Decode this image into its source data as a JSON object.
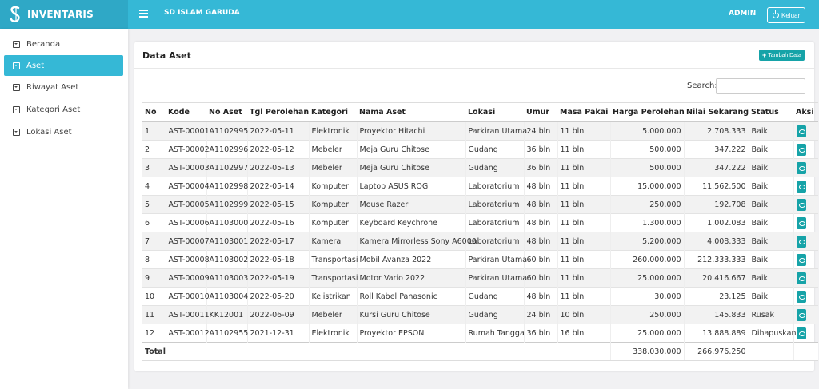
{
  "header": {
    "brand": "INVENTARIS",
    "school": "SD ISLAM GARUDA",
    "user": "ADMIN",
    "logout_label": "Keluar"
  },
  "colors": {
    "accent": "#35b8d6",
    "brand_bg": "#2fa8c6",
    "button": "#16a3a8"
  },
  "sidebar": {
    "items": [
      {
        "label": "Beranda",
        "active": false
      },
      {
        "label": "Aset",
        "active": true
      },
      {
        "label": "Riwayat Aset",
        "active": false
      },
      {
        "label": "Kategori Aset",
        "active": false
      },
      {
        "label": "Lokasi Aset",
        "active": false
      }
    ]
  },
  "main": {
    "title": "Data Aset",
    "add_label": "Tambah Data",
    "search_label": "Search:",
    "search_value": "",
    "table": {
      "headers": [
        "No",
        "Kode",
        "No Aset",
        "Tgl Perolehan",
        "Kategori",
        "Nama Aset",
        "Lokasi",
        "Umur",
        "Masa Pakai",
        "Harga Perolehan",
        "Nilai Sekarang",
        "Status",
        "Aksi"
      ],
      "rows": [
        [
          "1",
          "AST-00001",
          "A1102995",
          "2022-05-11",
          "Elektronik",
          "Proyektor Hitachi",
          "Parkiran Utama",
          "24 bln",
          "11 bln",
          "5.000.000",
          "2.708.333",
          "Baik"
        ],
        [
          "2",
          "AST-00002",
          "A1102996",
          "2022-05-12",
          "Mebeler",
          "Meja Guru Chitose",
          "Gudang",
          "36 bln",
          "11 bln",
          "500.000",
          "347.222",
          "Baik"
        ],
        [
          "3",
          "AST-00003",
          "A1102997",
          "2022-05-13",
          "Mebeler",
          "Meja Guru Chitose",
          "Gudang",
          "36 bln",
          "11 bln",
          "500.000",
          "347.222",
          "Baik"
        ],
        [
          "4",
          "AST-00004",
          "A1102998",
          "2022-05-14",
          "Komputer",
          "Laptop ASUS ROG",
          "Laboratorium",
          "48 bln",
          "11 bln",
          "15.000.000",
          "11.562.500",
          "Baik"
        ],
        [
          "5",
          "AST-00005",
          "A1102999",
          "2022-05-15",
          "Komputer",
          "Mouse Razer",
          "Laboratorium",
          "48 bln",
          "11 bln",
          "250.000",
          "192.708",
          "Baik"
        ],
        [
          "6",
          "AST-00006",
          "A1103000",
          "2022-05-16",
          "Komputer",
          "Keyboard Keychrone",
          "Laboratorium",
          "48 bln",
          "11 bln",
          "1.300.000",
          "1.002.083",
          "Baik"
        ],
        [
          "7",
          "AST-00007",
          "A1103001",
          "2022-05-17",
          "Kamera",
          "Kamera Mirrorless Sony A6000",
          "Laboratorium",
          "48 bln",
          "11 bln",
          "5.200.000",
          "4.008.333",
          "Baik"
        ],
        [
          "8",
          "AST-00008",
          "A1103002",
          "2022-05-18",
          "Transportasi",
          "Mobil Avanza 2022",
          "Parkiran Utama",
          "60 bln",
          "11 bln",
          "260.000.000",
          "212.333.333",
          "Baik"
        ],
        [
          "9",
          "AST-00009",
          "A1103003",
          "2022-05-19",
          "Transportasi",
          "Motor Vario 2022",
          "Parkiran Utama",
          "60 bln",
          "11 bln",
          "25.000.000",
          "20.416.667",
          "Baik"
        ],
        [
          "10",
          "AST-00010",
          "A1103004",
          "2022-05-20",
          "Kelistrikan",
          "Roll Kabel Panasonic",
          "Gudang",
          "48 bln",
          "11 bln",
          "30.000",
          "23.125",
          "Baik"
        ],
        [
          "11",
          "AST-00011",
          "KK12001",
          "2022-06-09",
          "Mebeler",
          "Kursi Guru Chitose",
          "Gudang",
          "24 bln",
          "10 bln",
          "250.000",
          "145.833",
          "Rusak"
        ],
        [
          "12",
          "AST-00012",
          "A1102955",
          "2021-12-31",
          "Elektronik",
          "Proyektor EPSON",
          "Rumah Tangga",
          "36 bln",
          "16 bln",
          "25.000.000",
          "13.888.889",
          "Dihapuskan"
        ]
      ],
      "total": {
        "label": "Total",
        "harga_perolehan": "338.030.000",
        "nilai_sekarang": "266.976.250"
      }
    }
  }
}
